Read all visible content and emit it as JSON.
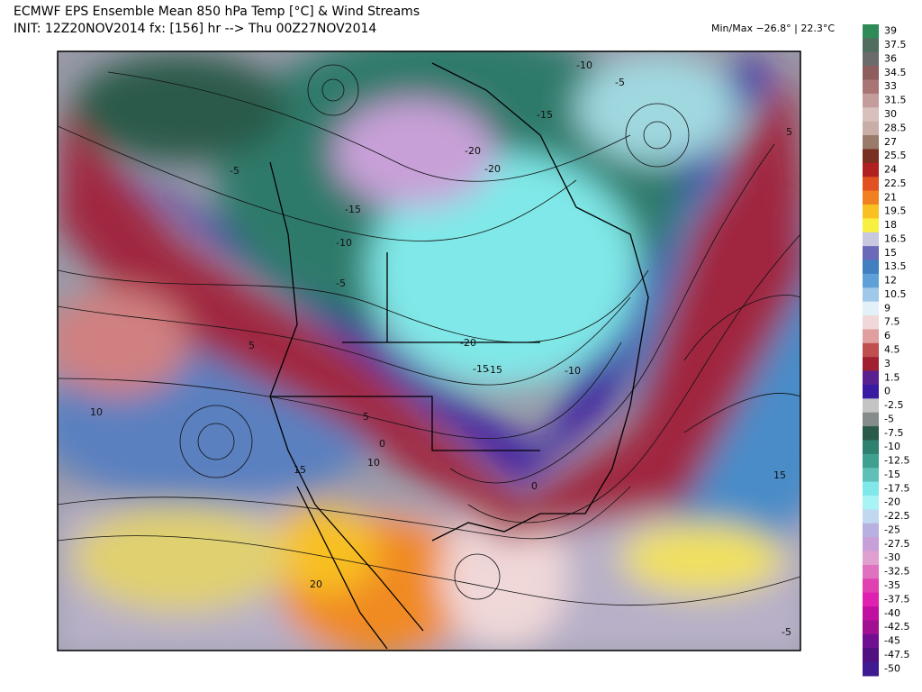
{
  "header": {
    "title": "ECMWF EPS Ensemble Mean 850 hPa Temp [°C] & Wind Streams",
    "init": "INIT: 12Z20NOV2014 fx: [156] hr --> Thu 00Z27NOV2014",
    "minmax": "Min/Max −26.8° | 22.3°C"
  },
  "map": {
    "contour_labels": [
      "-10",
      "-5",
      "-15",
      "-20",
      "-20",
      "-15",
      "-10",
      "-5",
      "-5",
      "5",
      "-15",
      "-20",
      "-15",
      "-10",
      "5",
      "10",
      "15",
      "15",
      "10",
      "0",
      "0",
      "20",
      "5",
      "-5"
    ]
  },
  "colorbar": {
    "values": [
      39,
      37.5,
      36,
      34.5,
      33,
      31.5,
      30,
      28.5,
      27,
      25.5,
      24,
      22.5,
      21,
      19.5,
      18,
      16.5,
      15,
      13.5,
      12,
      10.5,
      9,
      7.5,
      6,
      4.5,
      3,
      1.5,
      0,
      -2.5,
      -5,
      -7.5,
      -10,
      -12.5,
      -15,
      -17.5,
      -20,
      -22.5,
      -25,
      -27.5,
      -30,
      -32.5,
      -35,
      -37.5,
      -40,
      -42.5,
      -45,
      -47.5,
      -50
    ],
    "colors": [
      "#2e8b57",
      "#4f6e5e",
      "#6b6b6b",
      "#8e5e5e",
      "#a87474",
      "#c49c9c",
      "#d8c0bc",
      "#c8aea6",
      "#9a7a6a",
      "#7a3020",
      "#b02020",
      "#e05020",
      "#f08020",
      "#f8c020",
      "#f8f040",
      "#c8c8e0",
      "#6a6ab8",
      "#4080c0",
      "#60a0d8",
      "#a0c8e8",
      "#e4f0f8",
      "#f0d8d8",
      "#e0a0a0",
      "#c05050",
      "#a02030",
      "#5a2090",
      "#3a1aa0",
      "#c4c4c4",
      "#848c8c",
      "#2a5a4a",
      "#308070",
      "#40a090",
      "#60c0b8",
      "#80e8e8",
      "#a8f4f4",
      "#c0d8f0",
      "#b8b0e0",
      "#c8a0d8",
      "#e0a0d0",
      "#e070c0",
      "#e040b0",
      "#e020b0",
      "#c010a0",
      "#a01090",
      "#701090",
      "#501080",
      "#401a90"
    ]
  }
}
